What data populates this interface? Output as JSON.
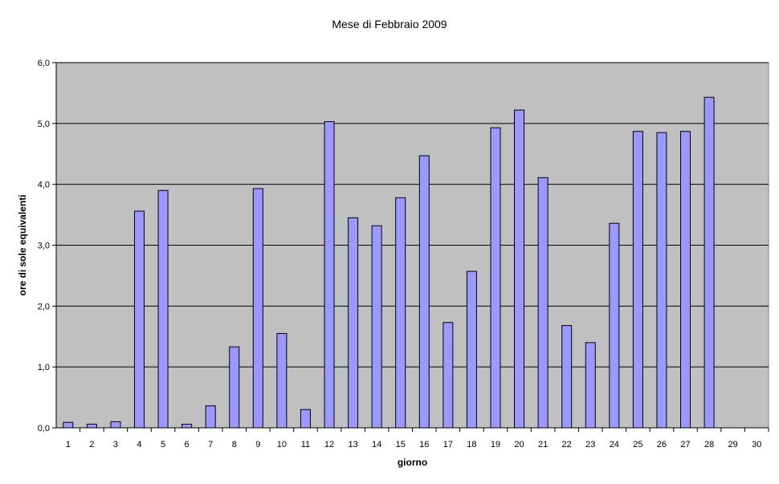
{
  "chart_data": {
    "type": "bar",
    "title": "Mese di Febbraio 2009",
    "xlabel": "giorno",
    "ylabel": "ore di sole equivalenti",
    "ylim": [
      0,
      6
    ],
    "y_ticks": [
      "0,0",
      "1,0",
      "2,0",
      "3,0",
      "4,0",
      "5,0",
      "6,0"
    ],
    "categories": [
      "1",
      "2",
      "3",
      "4",
      "5",
      "6",
      "7",
      "8",
      "9",
      "10",
      "11",
      "12",
      "13",
      "14",
      "15",
      "16",
      "17",
      "18",
      "19",
      "20",
      "21",
      "22",
      "23",
      "24",
      "25",
      "26",
      "27",
      "28",
      "29",
      "30"
    ],
    "values": [
      0.09,
      0.06,
      0.1,
      3.56,
      3.9,
      0.06,
      0.36,
      1.33,
      3.93,
      1.55,
      0.3,
      5.03,
      3.45,
      3.32,
      3.78,
      4.47,
      1.73,
      2.57,
      4.93,
      5.22,
      4.11,
      1.68,
      1.4,
      3.36,
      4.87,
      4.85,
      4.87,
      5.43,
      null,
      null
    ],
    "grid": true,
    "legend": "none",
    "colors": {
      "bar_fill": "#9999ff",
      "bar_stroke": "#000000",
      "plot_background": "#c0c0c0",
      "gridline": "#000000"
    }
  }
}
